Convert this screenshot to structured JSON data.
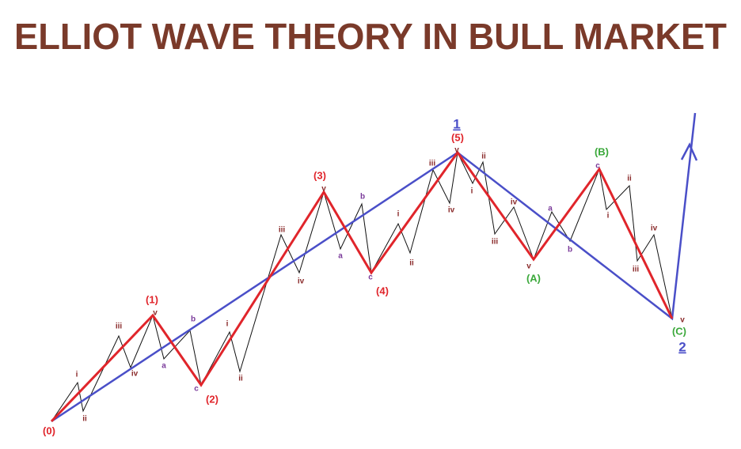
{
  "title": "ELLIOT WAVE THEORY IN BULL MARKET",
  "labels": [
    "(0)",
    "(1)",
    "(2)",
    "(3)",
    "(4)",
    "(5)",
    "(A)",
    "(B)",
    "(C)",
    "1",
    "2",
    "i",
    "ii",
    "iii",
    "iv",
    "v",
    "a",
    "b",
    "c",
    "i",
    "ii",
    "iii",
    "iv",
    "v",
    "a",
    "b",
    "c",
    "i",
    "ii",
    "iii",
    "iv",
    "v",
    "ii",
    "i",
    "iv",
    "iii",
    "v",
    "a",
    "b",
    "c",
    "ii",
    "i",
    "iv",
    "iii",
    "v"
  ]
}
